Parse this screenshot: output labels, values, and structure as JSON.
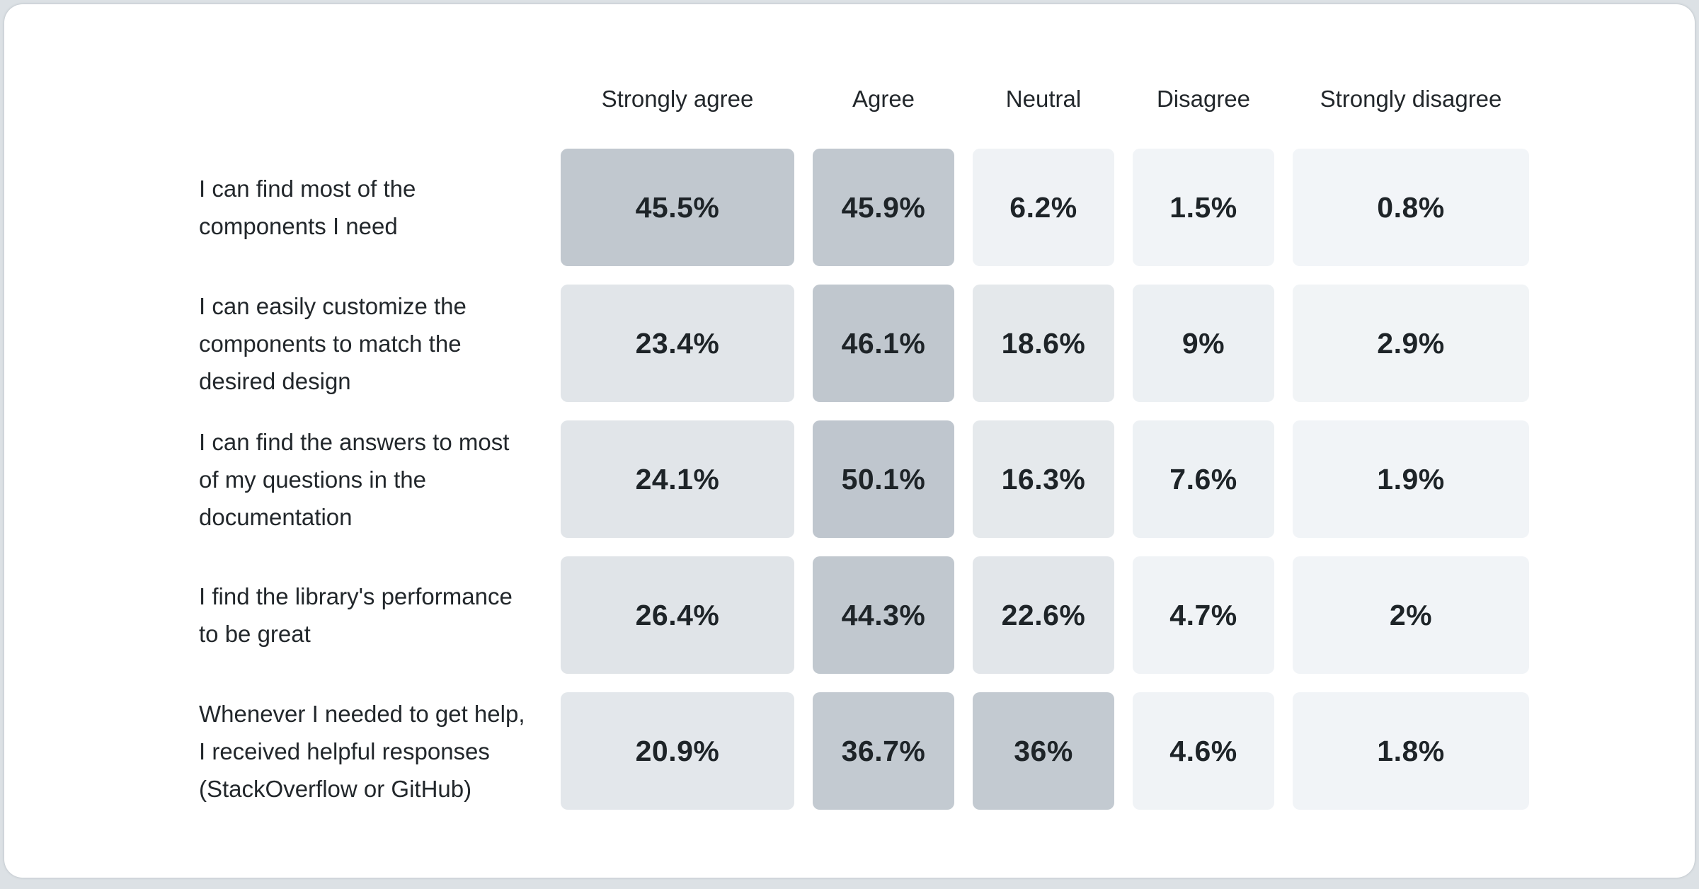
{
  "colors": {
    "page_background": "#dce1e5",
    "card_background": "#ffffff",
    "text_primary": "#22272b",
    "value_text": "#1e2428",
    "heat_low": "#f2f5f8",
    "heat_high": "#bfc6ce"
  },
  "survey": {
    "columns": [
      "Strongly agree",
      "Agree",
      "Neutral",
      "Disagree",
      "Strongly disagree"
    ],
    "rows": [
      {
        "label": "I can find most of the components I need",
        "cells": [
          {
            "value": "45.5%",
            "color": "#c1c8cf"
          },
          {
            "value": "45.9%",
            "color": "#c1c8cf"
          },
          {
            "value": "6.2%",
            "color": "#eff2f5"
          },
          {
            "value": "1.5%",
            "color": "#f1f4f7"
          },
          {
            "value": "0.8%",
            "color": "#f2f5f8"
          }
        ]
      },
      {
        "label": "I can easily customize the components to match the desired design",
        "cells": [
          {
            "value": "23.4%",
            "color": "#e1e5e9"
          },
          {
            "value": "46.1%",
            "color": "#c0c7ce"
          },
          {
            "value": "18.6%",
            "color": "#e4e8eb"
          },
          {
            "value": "9%",
            "color": "#ecf0f3"
          },
          {
            "value": "2.9%",
            "color": "#f1f4f6"
          }
        ]
      },
      {
        "label": "I can find the answers to most of my questions in the documentation",
        "cells": [
          {
            "value": "24.1%",
            "color": "#e1e5e9"
          },
          {
            "value": "50.1%",
            "color": "#bfc6ce"
          },
          {
            "value": "16.3%",
            "color": "#e5e9ec"
          },
          {
            "value": "7.6%",
            "color": "#edf1f4"
          },
          {
            "value": "1.9%",
            "color": "#f1f4f7"
          }
        ]
      },
      {
        "label": "I find the library's performance to be great",
        "cells": [
          {
            "value": "26.4%",
            "color": "#e0e4e8"
          },
          {
            "value": "44.3%",
            "color": "#c1c8cf"
          },
          {
            "value": "22.6%",
            "color": "#e2e6ea"
          },
          {
            "value": "4.7%",
            "color": "#f0f3f6"
          },
          {
            "value": "2%",
            "color": "#f1f4f7"
          }
        ]
      },
      {
        "label": "Whenever I needed to get help, I received helpful responses (StackOverflow or GitHub)",
        "cells": [
          {
            "value": "20.9%",
            "color": "#e3e7eb"
          },
          {
            "value": "36.7%",
            "color": "#c3cad1"
          },
          {
            "value": "36%",
            "color": "#c3cad1"
          },
          {
            "value": "4.6%",
            "color": "#f0f3f6"
          },
          {
            "value": "1.8%",
            "color": "#f1f4f7"
          }
        ]
      }
    ]
  },
  "chart_data": {
    "type": "heatmap",
    "title": "",
    "columns": [
      "Strongly agree",
      "Agree",
      "Neutral",
      "Disagree",
      "Strongly disagree"
    ],
    "rows": [
      "I can find most of the components I need",
      "I can easily customize the components to match the desired design",
      "I can find the answers to most of my questions in the documentation",
      "I find the library's performance to be great",
      "Whenever I needed to get help, I received helpful responses (StackOverflow or GitHub)"
    ],
    "values": [
      [
        45.5,
        45.9,
        6.2,
        1.5,
        0.8
      ],
      [
        23.4,
        46.1,
        18.6,
        9,
        2.9
      ],
      [
        24.1,
        50.1,
        16.3,
        7.6,
        1.9
      ],
      [
        26.4,
        44.3,
        22.6,
        4.7,
        2
      ],
      [
        20.9,
        36.7,
        36,
        4.6,
        1.8
      ]
    ],
    "unit": "%",
    "legend_position": "none",
    "grid": false,
    "color_scale": {
      "low": "#f2f5f8",
      "high": "#bfc6ce"
    }
  }
}
